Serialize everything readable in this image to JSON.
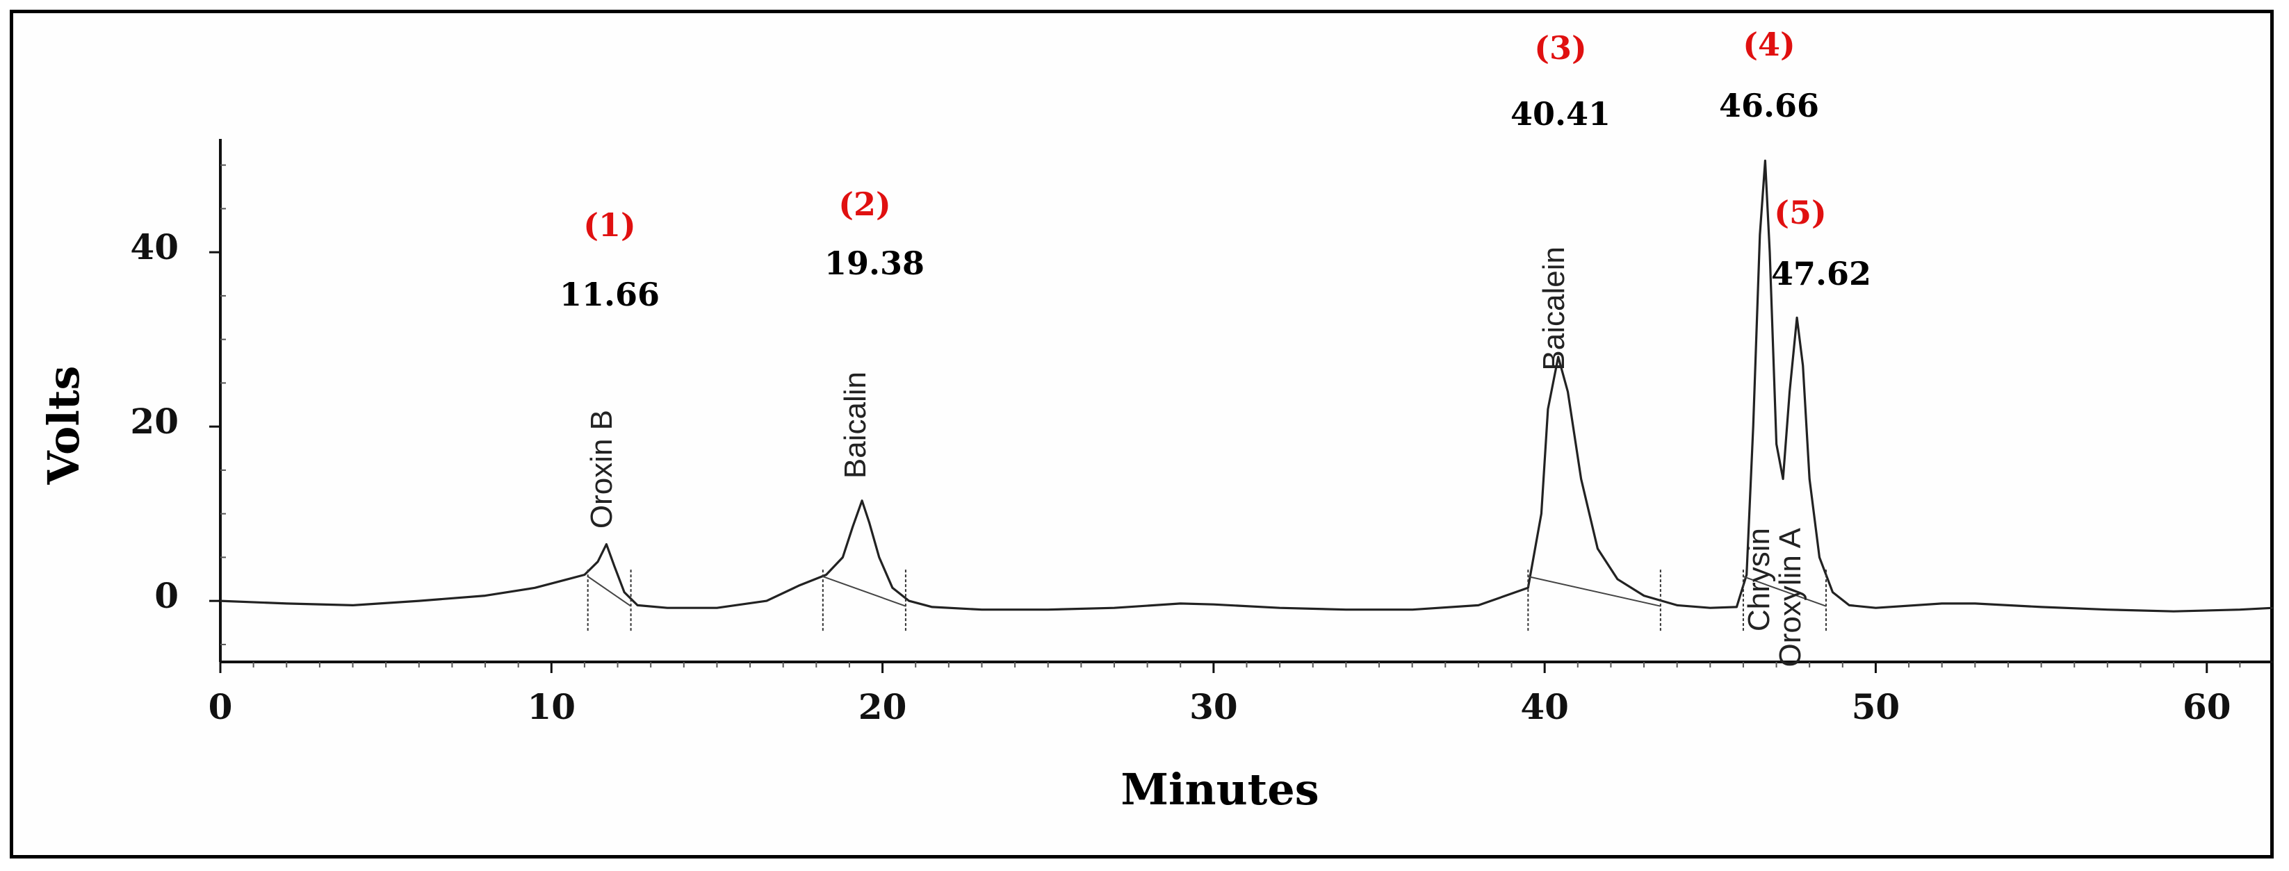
{
  "chart_data": {
    "type": "line",
    "xlabel": "Minutes",
    "ylabel": "Volts",
    "xlim": [
      0,
      62
    ],
    "ylim": [
      -7,
      53
    ],
    "xticks": [
      0,
      10,
      20,
      30,
      40,
      50,
      60
    ],
    "yticks": [
      0,
      20,
      40
    ],
    "xtick_labels": [
      "0",
      "10",
      "20",
      "30",
      "40",
      "50",
      "60"
    ],
    "ytick_labels": [
      "0",
      "20",
      "40"
    ],
    "grid": false,
    "peaks": [
      {
        "number": "(1)",
        "rt": 11.66,
        "rt_label": "11.66",
        "name": "Oroxin B",
        "height": 6.5
      },
      {
        "number": "(2)",
        "rt": 19.38,
        "rt_label": "19.38",
        "name": "Baicalin",
        "height": 11.5
      },
      {
        "number": "(3)",
        "rt": 40.41,
        "rt_label": "40.41",
        "name": "Baicalein",
        "height": 28
      },
      {
        "number": "(4)",
        "rt": 46.66,
        "rt_label": "46.66",
        "name": "Chrysin",
        "height": 50.5
      },
      {
        "number": "(5)",
        "rt": 47.62,
        "rt_label": "47.62",
        "name": "Oroxylin A",
        "height": 32.5
      }
    ],
    "series": [
      {
        "x": [
          0,
          2,
          4,
          6,
          8,
          9.5,
          10.5,
          11,
          11.4,
          11.66,
          11.9,
          12.2,
          12.6,
          13.5,
          15,
          16.5,
          17.5,
          18.3,
          18.8,
          19.1,
          19.38,
          19.6,
          19.9,
          20.3,
          20.8,
          21.5,
          23,
          25,
          27,
          29,
          30,
          32,
          34,
          36,
          38,
          39.5,
          39.9,
          40.1,
          40.41,
          40.7,
          41.1,
          41.6,
          42.2,
          43,
          44,
          45,
          45.8,
          46.1,
          46.3,
          46.5,
          46.66,
          46.8,
          47,
          47.2,
          47.4,
          47.62,
          47.8,
          48,
          48.3,
          48.7,
          49.2,
          50,
          52,
          53,
          55,
          57,
          59,
          61,
          62
        ],
        "y": [
          0,
          -0.3,
          -0.5,
          0,
          0.6,
          1.5,
          2.5,
          3,
          4.5,
          6.5,
          4,
          1,
          -0.5,
          -0.8,
          -0.8,
          0,
          1.8,
          3,
          5,
          8.5,
          11.5,
          9,
          5,
          1.5,
          0,
          -0.7,
          -1,
          -1,
          -0.8,
          -0.3,
          -0.4,
          -0.8,
          -1,
          -1,
          -0.5,
          1.5,
          10,
          22,
          28,
          24,
          14,
          6,
          2.5,
          0.6,
          -0.5,
          -0.8,
          -0.7,
          3,
          20,
          42,
          50.5,
          40,
          18,
          14,
          24,
          32.5,
          27,
          14,
          5,
          1,
          -0.5,
          -0.8,
          -0.3,
          -0.3,
          -0.7,
          -1,
          -1.2,
          -1,
          -0.8
        ]
      }
    ]
  }
}
